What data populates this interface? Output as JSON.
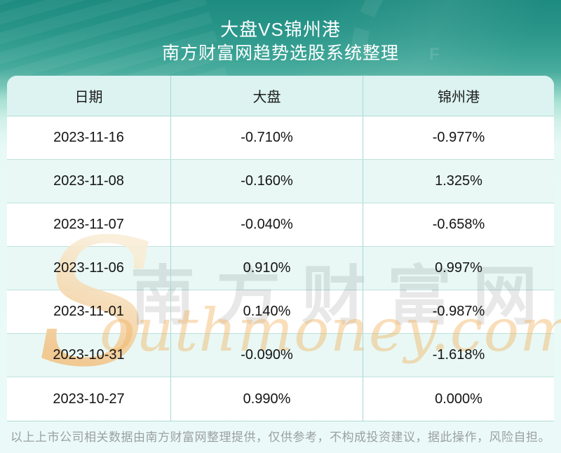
{
  "header": {
    "title": "大盘VS锦州港",
    "subtitle": "南方财富网趋势选股系统整理"
  },
  "table": {
    "columns": [
      "日期",
      "大盘",
      "锦州港"
    ],
    "rows": [
      [
        "2023-11-16",
        "-0.710%",
        "-0.977%"
      ],
      [
        "2023-11-08",
        "-0.160%",
        "1.325%"
      ],
      [
        "2023-11-07",
        "-0.040%",
        "-0.658%"
      ],
      [
        "2023-11-06",
        "0.910%",
        "0.997%"
      ],
      [
        "2023-11-01",
        "0.140%",
        "-0.987%"
      ],
      [
        "2023-10-31",
        "-0.090%",
        "-1.618%"
      ],
      [
        "2023-10-27",
        "0.990%",
        "0.000%"
      ]
    ]
  },
  "chart_data": {
    "type": "table",
    "title": "大盘VS锦州港",
    "subtitle": "南方财富网趋势选股系统整理",
    "columns": [
      "日期",
      "大盘",
      "锦州港"
    ],
    "rows": [
      [
        "2023-11-16",
        "-0.710%",
        "-0.977%"
      ],
      [
        "2023-11-08",
        "-0.160%",
        "1.325%"
      ],
      [
        "2023-11-07",
        "-0.040%",
        "-0.658%"
      ],
      [
        "2023-11-06",
        "0.910%",
        "0.997%"
      ],
      [
        "2023-11-01",
        "0.140%",
        "-0.987%"
      ],
      [
        "2023-10-31",
        "-0.090%",
        "-1.618%"
      ],
      [
        "2023-10-27",
        "0.990%",
        "0.000%"
      ]
    ],
    "series": [
      {
        "name": "大盘",
        "values_pct": [
          -0.71,
          -0.16,
          -0.04,
          0.91,
          0.14,
          -0.09,
          0.99
        ]
      },
      {
        "name": "锦州港",
        "values_pct": [
          -0.977,
          1.325,
          -0.658,
          0.997,
          -0.987,
          -1.618,
          0.0
        ]
      }
    ],
    "categories": [
      "2023-11-16",
      "2023-11-08",
      "2023-11-07",
      "2023-11-06",
      "2023-11-01",
      "2023-10-31",
      "2023-10-27"
    ]
  },
  "watermark": {
    "swash": "S",
    "cjk": "南方财富网",
    "script": "outhmoney.com",
    "gauge_letter": "F"
  },
  "footer": {
    "disclaimer": "以上上市公司相关数据由南方财富网整理提供，仅供参考，不构成投资建议，据此操作，风险自担。"
  },
  "colors": {
    "banner_teal": "#1e8b80",
    "page_light": "#ebfaf8",
    "table_header_bg": "#dcf3f1",
    "row_alt_bg": "#e9f8f5",
    "grid_line": "#aedcd6",
    "watermark_orange": "#f2b45e",
    "footer_text": "#9aa0a0",
    "title_text": "#ffffff"
  }
}
